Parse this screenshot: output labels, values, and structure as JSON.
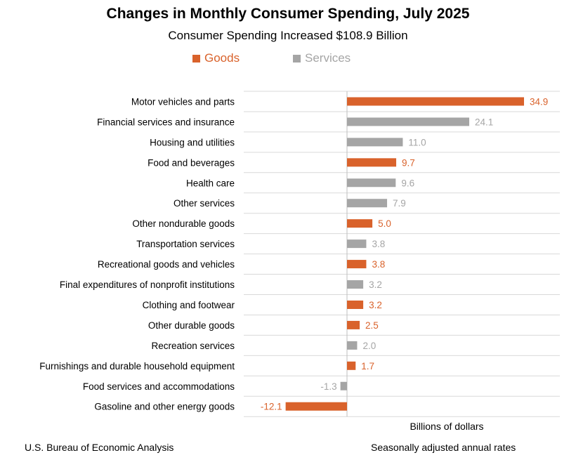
{
  "colors": {
    "goods": "#d9622b",
    "services": "#a5a5a5",
    "grid": "#d9d9d9",
    "axis": "#bfbfbf"
  },
  "footer": {
    "source": "U.S. Bureau of Economic Analysis",
    "note": "Seasonally adjusted annual rates"
  },
  "chart_data": {
    "type": "bar",
    "orientation": "horizontal",
    "title": "Changes in Monthly Consumer Spending, July 2025",
    "subtitle": "Consumer Spending Increased $108.9 Billion",
    "xlabel": "Billions of dollars",
    "ylabel": "",
    "grid": "horizontal lines between categories",
    "legend": {
      "placement": "top-center",
      "entries": [
        "Goods",
        "Services"
      ]
    },
    "xlim": [
      -15,
      40
    ],
    "categories": [
      "Motor vehicles and parts",
      "Financial services and insurance",
      "Housing and utilities",
      "Food and beverages",
      "Health care",
      "Other services",
      "Other nondurable goods",
      "Transportation services",
      "Recreational goods and vehicles",
      "Final expenditures of nonprofit institutions",
      "Clothing and footwear",
      "Other durable goods",
      "Recreation services",
      "Furnishings and durable household equipment",
      "Food services and accommodations",
      "Gasoline and other energy goods"
    ],
    "values": [
      34.9,
      24.1,
      11.0,
      9.7,
      9.6,
      7.9,
      5.0,
      3.8,
      3.8,
      3.2,
      3.2,
      2.5,
      2.0,
      1.7,
      -1.3,
      -12.1
    ],
    "labels": [
      "34.9",
      "24.1",
      "11.0",
      "9.7",
      "9.6",
      "7.9",
      "5.0",
      "3.8",
      "3.8",
      "3.2",
      "3.2",
      "2.5",
      "2.0",
      "1.7",
      "-1.3",
      "-12.1"
    ],
    "groups": [
      "Goods",
      "Services",
      "Services",
      "Goods",
      "Services",
      "Services",
      "Goods",
      "Services",
      "Goods",
      "Services",
      "Goods",
      "Goods",
      "Services",
      "Goods",
      "Services",
      "Goods"
    ]
  }
}
